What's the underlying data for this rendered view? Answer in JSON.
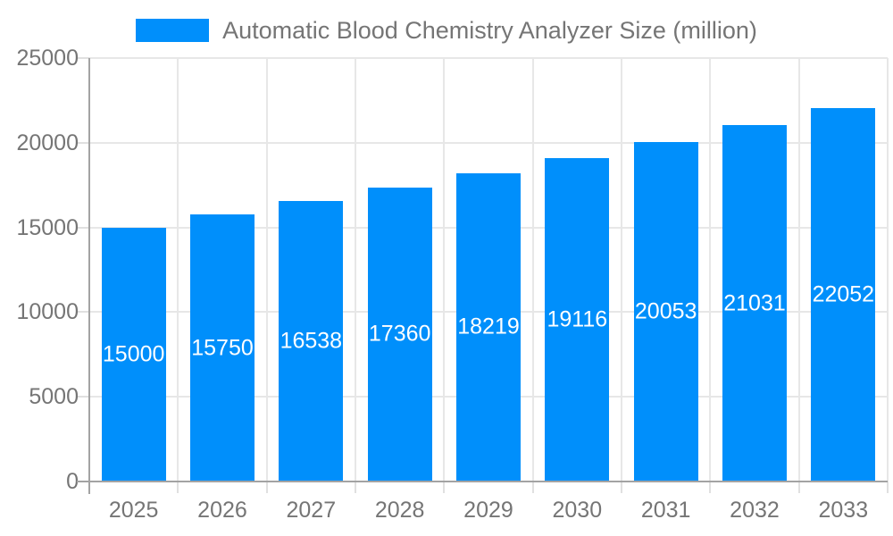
{
  "legend": {
    "label": "Automatic Blood Chemistry Analyzer Size (million)"
  },
  "colors": {
    "bar": "#008FFB",
    "bar_label_text": "#ffffff",
    "axis_text": "#757575",
    "grid": "#e7e7e7",
    "tick": "#e0e0e0",
    "axis_line": "#a3a3a3"
  },
  "chart_data": {
    "type": "bar",
    "title": "Automatic Blood Chemistry Analyzer Size (million)",
    "categories": [
      "2025",
      "2026",
      "2027",
      "2028",
      "2029",
      "2030",
      "2031",
      "2032",
      "2033"
    ],
    "values": [
      15000,
      15750,
      16538,
      17360,
      18219,
      19116,
      20053,
      21031,
      22052
    ],
    "bar_value_labels": [
      "15000",
      "15750",
      "16538",
      "17360",
      "18219",
      "19116",
      "20053",
      "21031",
      "22052"
    ],
    "yticks": [
      0,
      5000,
      10000,
      15000,
      20000,
      25000
    ],
    "ylim": [
      0,
      25000
    ],
    "xlabel": "",
    "ylabel": "",
    "grid": true,
    "legend_position": "top",
    "bar_label_position": "inside-center"
  }
}
